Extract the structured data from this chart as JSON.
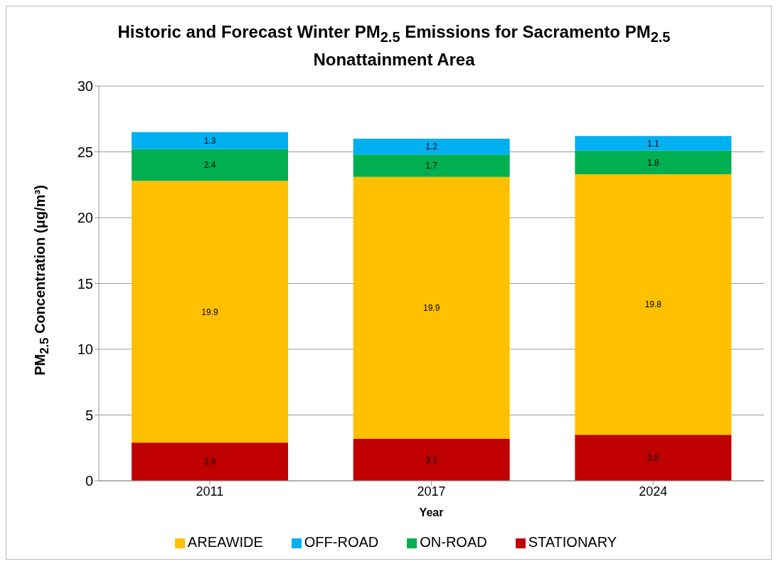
{
  "chart_data": {
    "type": "bar",
    "title": "Historic and Forecast Winter PM$_{2.5}$ Emissions for Sacramento PM$_{2.5}$ Nonattainment Area",
    "xlabel": "Year",
    "ylabel": "PM$_{2.5}$ Concentration (μg/m³)",
    "categories": [
      "2011",
      "2017",
      "2024"
    ],
    "stacked": true,
    "data_labels": true,
    "series": [
      {
        "name": "STATIONARY",
        "color": "#c00000",
        "values": [
          2.9,
          3.2,
          3.5
        ]
      },
      {
        "name": "AREAWIDE",
        "color": "#ffc000",
        "values": [
          19.9,
          19.9,
          19.8
        ]
      },
      {
        "name": "ON-ROAD",
        "color": "#00b050",
        "values": [
          2.4,
          1.7,
          1.8
        ]
      },
      {
        "name": "OFF-ROAD",
        "color": "#00b0f0",
        "values": [
          1.3,
          1.2,
          1.1
        ]
      }
    ],
    "ylim": [
      0,
      30
    ],
    "yticks": [
      0,
      5,
      10,
      15,
      20,
      25,
      30
    ],
    "grid": "y",
    "legend": "bottom"
  }
}
